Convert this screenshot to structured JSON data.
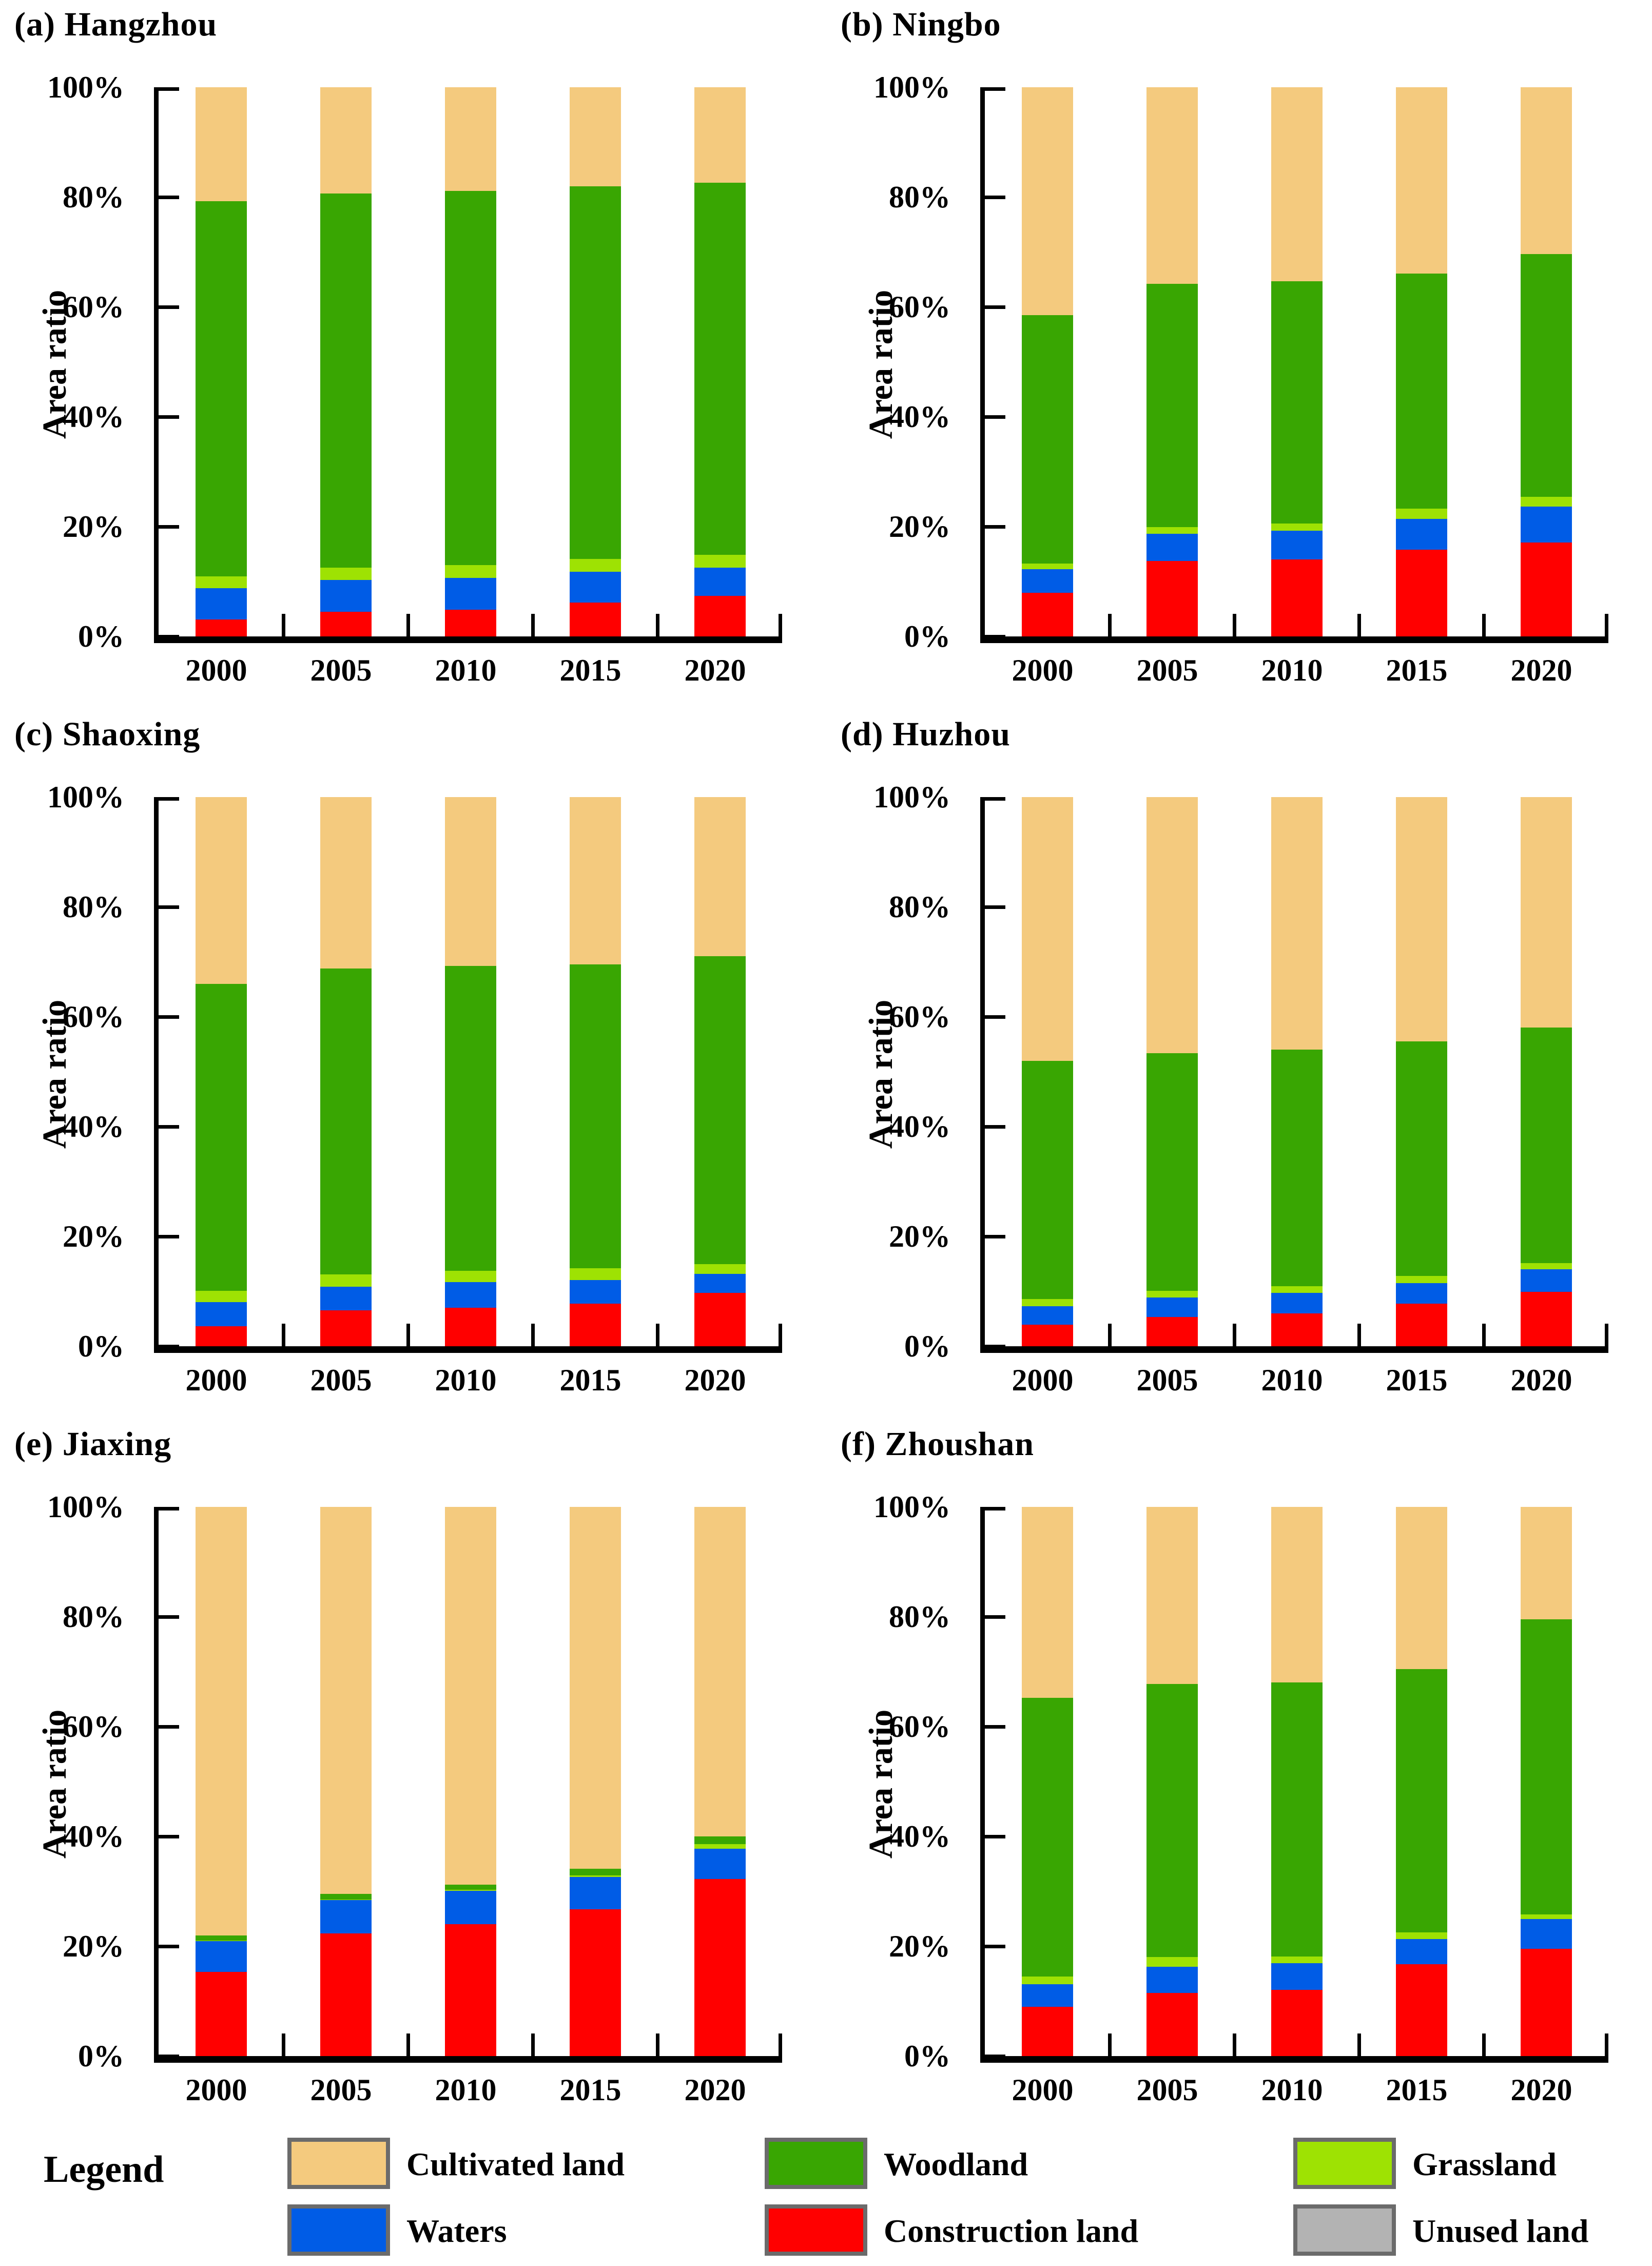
{
  "y_axis": {
    "label": "Area ratio",
    "tick_labels": [
      "0%",
      "20%",
      "40%",
      "60%",
      "80%",
      "100%"
    ],
    "lim": [
      0,
      100
    ]
  },
  "x_axis": {
    "categories": [
      "2000",
      "2005",
      "2010",
      "2015",
      "2020"
    ]
  },
  "colors": {
    "cultivated_land": "#F4CA7E",
    "woodland": "#39A602",
    "grassland": "#9EE203",
    "waters": "#005CE6",
    "construction_land": "#FF0000",
    "unused_land": "#B3B3B3"
  },
  "legend": {
    "title": "Legend",
    "swatch_border": "#6B6B6B",
    "items": [
      {
        "key": "cultivated_land",
        "label": "Cultivated land"
      },
      {
        "key": "woodland",
        "label": "Woodland"
      },
      {
        "key": "grassland",
        "label": "Grassland"
      },
      {
        "key": "waters",
        "label": "Waters"
      },
      {
        "key": "construction_land",
        "label": "Construction land"
      },
      {
        "key": "unused_land",
        "label": "Unused land"
      }
    ]
  },
  "chart_data": [
    {
      "type": "bar",
      "stacked": true,
      "stack_order": "bottom-to-top",
      "title": "(a) Hangzhou",
      "city": "Hangzhou",
      "categories": [
        "2000",
        "2005",
        "2010",
        "2015",
        "2020"
      ],
      "ylabel": "Area ratio",
      "ylim": [
        0,
        100
      ],
      "ytick_labels": [
        "0%",
        "20%",
        "40%",
        "60%",
        "80%",
        "100%"
      ],
      "series": [
        {
          "key": "construction_land",
          "name": "Construction land",
          "values": [
            3.1,
            4.5,
            4.9,
            6.2,
            7.4
          ]
        },
        {
          "key": "waters",
          "name": "Waters",
          "values": [
            5.7,
            5.8,
            5.8,
            5.6,
            5.1
          ]
        },
        {
          "key": "grassland",
          "name": "Grassland",
          "values": [
            2.1,
            2.2,
            2.3,
            2.3,
            2.4
          ]
        },
        {
          "key": "woodland",
          "name": "Woodland",
          "values": [
            68.4,
            68.2,
            68.1,
            67.9,
            67.7
          ]
        },
        {
          "key": "cultivated_land",
          "name": "Cultivated land",
          "values": [
            20.7,
            19.3,
            18.9,
            18.0,
            17.4
          ]
        },
        {
          "key": "unused_land",
          "name": "Unused land",
          "values": [
            0,
            0,
            0,
            0,
            0
          ]
        }
      ]
    },
    {
      "type": "bar",
      "stacked": true,
      "stack_order": "bottom-to-top",
      "title": "(b) Ningbo",
      "city": "Ningbo",
      "categories": [
        "2000",
        "2005",
        "2010",
        "2015",
        "2020"
      ],
      "ylabel": "Area ratio",
      "ylim": [
        0,
        100
      ],
      "ytick_labels": [
        "0%",
        "20%",
        "40%",
        "60%",
        "80%",
        "100%"
      ],
      "series": [
        {
          "key": "construction_land",
          "name": "Construction land",
          "values": [
            7.9,
            13.7,
            14.0,
            15.8,
            17.1
          ]
        },
        {
          "key": "waters",
          "name": "Waters",
          "values": [
            4.3,
            5.0,
            5.3,
            5.6,
            6.5
          ]
        },
        {
          "key": "grassland",
          "name": "Grassland",
          "values": [
            1.1,
            1.2,
            1.3,
            1.9,
            1.8
          ]
        },
        {
          "key": "woodland",
          "name": "Woodland",
          "values": [
            45.2,
            44.3,
            44.1,
            42.8,
            44.2
          ]
        },
        {
          "key": "cultivated_land",
          "name": "Cultivated land",
          "values": [
            41.5,
            35.8,
            35.3,
            33.9,
            30.4
          ]
        },
        {
          "key": "unused_land",
          "name": "Unused land",
          "values": [
            0,
            0,
            0,
            0,
            0
          ]
        }
      ]
    },
    {
      "type": "bar",
      "stacked": true,
      "stack_order": "bottom-to-top",
      "title": "(c) Shaoxing",
      "city": "Shaoxing",
      "categories": [
        "2000",
        "2005",
        "2010",
        "2015",
        "2020"
      ],
      "ylabel": "Area ratio",
      "ylim": [
        0,
        100
      ],
      "ytick_labels": [
        "0%",
        "20%",
        "40%",
        "60%",
        "80%",
        "100%"
      ],
      "series": [
        {
          "key": "construction_land",
          "name": "Construction land",
          "values": [
            3.6,
            6.5,
            7.0,
            7.8,
            9.7
          ]
        },
        {
          "key": "waters",
          "name": "Waters",
          "values": [
            4.4,
            4.3,
            4.7,
            4.3,
            3.5
          ]
        },
        {
          "key": "grassland",
          "name": "Grassland",
          "values": [
            2.1,
            2.3,
            2.0,
            2.1,
            1.8
          ]
        },
        {
          "key": "woodland",
          "name": "Woodland",
          "values": [
            55.9,
            55.7,
            55.6,
            55.3,
            56.0
          ]
        },
        {
          "key": "cultivated_land",
          "name": "Cultivated land",
          "values": [
            34.0,
            31.2,
            30.7,
            30.5,
            29.0
          ]
        },
        {
          "key": "unused_land",
          "name": "Unused land",
          "values": [
            0,
            0,
            0,
            0,
            0
          ]
        }
      ]
    },
    {
      "type": "bar",
      "stacked": true,
      "stack_order": "bottom-to-top",
      "title": "(d) Huzhou",
      "city": "Huzhou",
      "categories": [
        "2000",
        "2005",
        "2010",
        "2015",
        "2020"
      ],
      "ylabel": "Area ratio",
      "ylim": [
        0,
        100
      ],
      "ytick_labels": [
        "0%",
        "20%",
        "40%",
        "60%",
        "80%",
        "100%"
      ],
      "series": [
        {
          "key": "construction_land",
          "name": "Construction land",
          "values": [
            3.9,
            5.3,
            6.0,
            7.8,
            9.9
          ]
        },
        {
          "key": "waters",
          "name": "Waters",
          "values": [
            3.4,
            3.6,
            3.7,
            3.7,
            4.1
          ]
        },
        {
          "key": "grassland",
          "name": "Grassland",
          "values": [
            1.3,
            1.2,
            1.2,
            1.3,
            1.1
          ]
        },
        {
          "key": "woodland",
          "name": "Woodland",
          "values": [
            43.4,
            43.3,
            43.1,
            42.7,
            42.9
          ]
        },
        {
          "key": "cultivated_land",
          "name": "Cultivated land",
          "values": [
            48.0,
            46.6,
            46.0,
            44.5,
            42.0
          ]
        },
        {
          "key": "unused_land",
          "name": "Unused land",
          "values": [
            0,
            0,
            0,
            0,
            0
          ]
        }
      ]
    },
    {
      "type": "bar",
      "stacked": true,
      "stack_order": "bottom-to-top",
      "title": "(e) Jiaxing",
      "city": "Jiaxing",
      "categories": [
        "2000",
        "2005",
        "2010",
        "2015",
        "2020"
      ],
      "ylabel": "Area ratio",
      "ylim": [
        0,
        100
      ],
      "ytick_labels": [
        "0%",
        "20%",
        "40%",
        "60%",
        "80%",
        "100%"
      ],
      "series": [
        {
          "key": "construction_land",
          "name": "Construction land",
          "values": [
            15.3,
            22.3,
            24.0,
            26.7,
            32.2
          ]
        },
        {
          "key": "waters",
          "name": "Waters",
          "values": [
            5.6,
            6.1,
            6.1,
            5.9,
            5.6
          ]
        },
        {
          "key": "grassland",
          "name": "Grassland",
          "values": [
            0.1,
            0.1,
            0.2,
            0.3,
            0.8
          ]
        },
        {
          "key": "woodland",
          "name": "Woodland",
          "values": [
            1.0,
            1.0,
            0.9,
            1.2,
            1.4
          ]
        },
        {
          "key": "cultivated_land",
          "name": "Cultivated land",
          "values": [
            78.0,
            70.5,
            68.8,
            65.9,
            60.0
          ]
        },
        {
          "key": "unused_land",
          "name": "Unused land",
          "values": [
            0,
            0,
            0,
            0,
            0
          ]
        }
      ]
    },
    {
      "type": "bar",
      "stacked": true,
      "stack_order": "bottom-to-top",
      "title": "(f) Zhoushan",
      "city": "Zhoushan",
      "categories": [
        "2000",
        "2005",
        "2010",
        "2015",
        "2020"
      ],
      "ylabel": "Area ratio",
      "ylim": [
        0,
        100
      ],
      "ytick_labels": [
        "0%",
        "20%",
        "40%",
        "60%",
        "80%",
        "100%"
      ],
      "series": [
        {
          "key": "construction_land",
          "name": "Construction land",
          "values": [
            9.0,
            11.5,
            12.1,
            16.7,
            19.5
          ]
        },
        {
          "key": "waters",
          "name": "Waters",
          "values": [
            4.1,
            4.8,
            4.8,
            4.6,
            5.5
          ]
        },
        {
          "key": "grassland",
          "name": "Grassland",
          "values": [
            1.4,
            1.7,
            1.2,
            1.2,
            0.8
          ]
        },
        {
          "key": "woodland",
          "name": "Woodland",
          "values": [
            50.7,
            49.8,
            49.9,
            48.0,
            53.7
          ]
        },
        {
          "key": "cultivated_land",
          "name": "Cultivated land",
          "values": [
            34.8,
            32.2,
            32.0,
            29.5,
            20.5
          ]
        },
        {
          "key": "unused_land",
          "name": "Unused land",
          "values": [
            0,
            0,
            0,
            0,
            0
          ]
        }
      ]
    }
  ]
}
